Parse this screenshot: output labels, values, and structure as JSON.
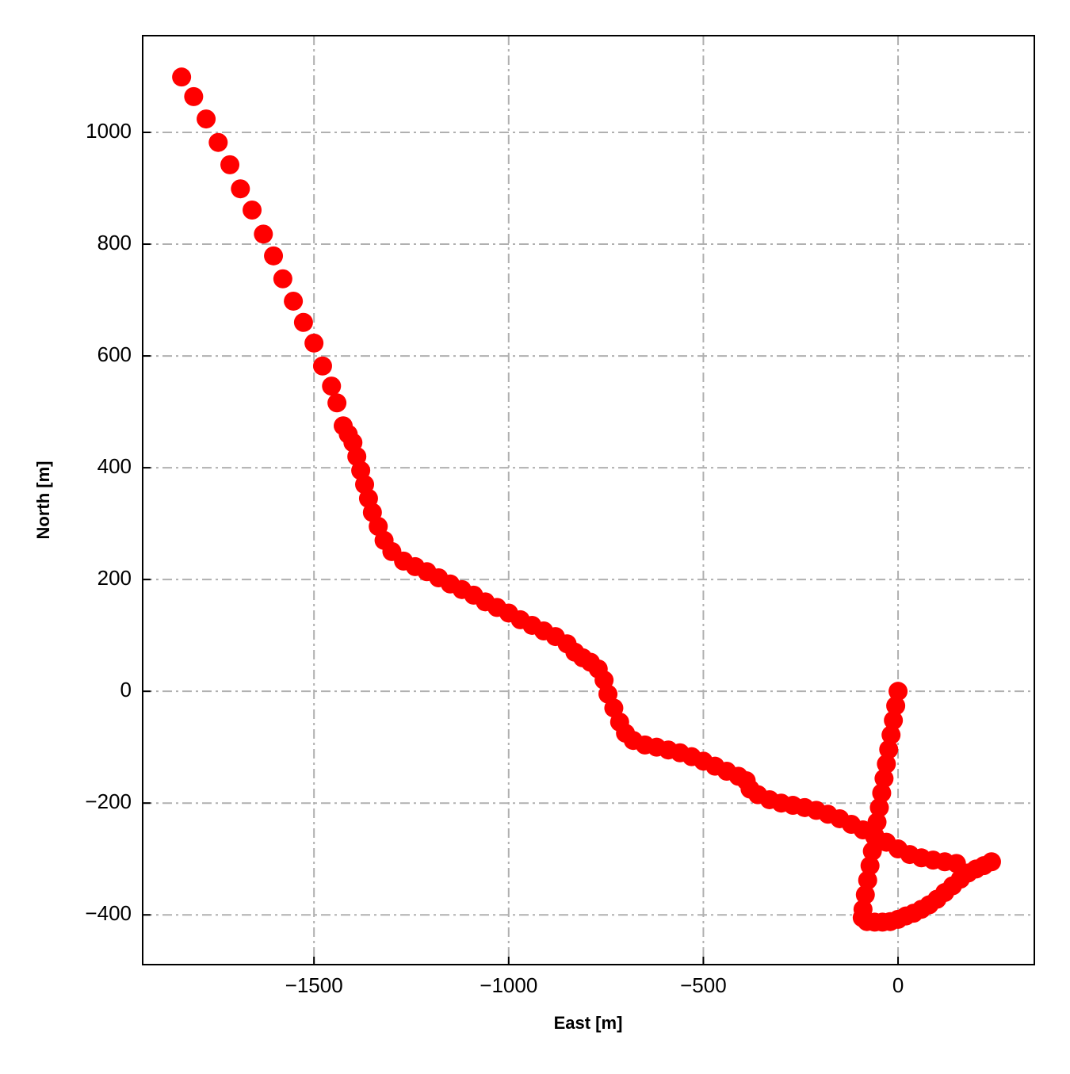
{
  "chart_data": {
    "type": "scatter",
    "xlabel": "East [m]",
    "ylabel": "North [m]",
    "color": "#ff0000",
    "grid": true,
    "xlim": [
      -1940,
      350
    ],
    "ylim": [
      -489,
      1173
    ],
    "xticks": [
      {
        "value": -1500,
        "label": "−1500"
      },
      {
        "value": -1000,
        "label": "−1000"
      },
      {
        "value": -500,
        "label": "−500"
      },
      0
    ],
    "yticks": [
      {
        "value": -400,
        "label": "−400"
      },
      {
        "value": -200,
        "label": "−200"
      },
      0,
      200,
      400,
      600,
      800,
      1000
    ],
    "x": [
      0,
      -6,
      -12,
      -18,
      -24,
      -30,
      -36,
      -42,
      -48,
      -54,
      -60,
      -66,
      -72,
      -78,
      -84,
      -90,
      -92,
      -80,
      -60,
      -40,
      -20,
      0,
      20,
      40,
      60,
      80,
      100,
      120,
      140,
      160,
      180,
      200,
      220,
      240,
      150,
      120,
      90,
      60,
      30,
      0,
      -30,
      -60,
      -90,
      -120,
      -150,
      -180,
      -210,
      -240,
      -270,
      -300,
      -330,
      -360,
      -380,
      -390,
      -410,
      -440,
      -470,
      -500,
      -530,
      -560,
      -590,
      -620,
      -650,
      -680,
      -700,
      -715,
      -730,
      -745,
      -755,
      -770,
      -790,
      -810,
      -830,
      -850,
      -880,
      -910,
      -940,
      -970,
      -1000,
      -1030,
      -1060,
      -1090,
      -1120,
      -1150,
      -1180,
      -1210,
      -1240,
      -1270,
      -1300,
      -1320,
      -1335,
      -1350,
      -1360,
      -1370,
      -1380,
      -1390,
      -1400,
      -1412,
      -1425,
      -1441,
      -1455,
      -1478,
      -1500,
      -1527,
      -1553,
      -1580,
      -1604,
      -1630,
      -1659,
      -1689,
      -1716,
      -1746,
      -1777,
      -1809,
      -1840
    ],
    "values": [
      0,
      -26,
      -52,
      -78,
      -104,
      -130,
      -156,
      -182,
      -208,
      -234,
      -260,
      -286,
      -312,
      -338,
      -364,
      -390,
      -405,
      -412,
      -413,
      -413,
      -412,
      -408,
      -402,
      -397,
      -390,
      -382,
      -372,
      -360,
      -348,
      -336,
      -325,
      -318,
      -312,
      -305,
      -308,
      -305,
      -302,
      -298,
      -292,
      -282,
      -270,
      -258,
      -248,
      -238,
      -228,
      -220,
      -213,
      -208,
      -204,
      -200,
      -194,
      -185,
      -175,
      -160,
      -152,
      -143,
      -134,
      -125,
      -117,
      -110,
      -105,
      -100,
      -96,
      -88,
      -75,
      -55,
      -30,
      -5,
      20,
      40,
      52,
      60,
      70,
      85,
      98,
      108,
      118,
      128,
      140,
      150,
      160,
      172,
      182,
      192,
      203,
      214,
      223,
      233,
      250,
      270,
      295,
      320,
      345,
      370,
      395,
      420,
      445,
      460,
      475,
      516,
      546,
      582,
      623,
      660,
      698,
      738,
      779,
      818,
      861,
      899,
      942,
      982,
      1024,
      1064,
      1099
    ]
  }
}
